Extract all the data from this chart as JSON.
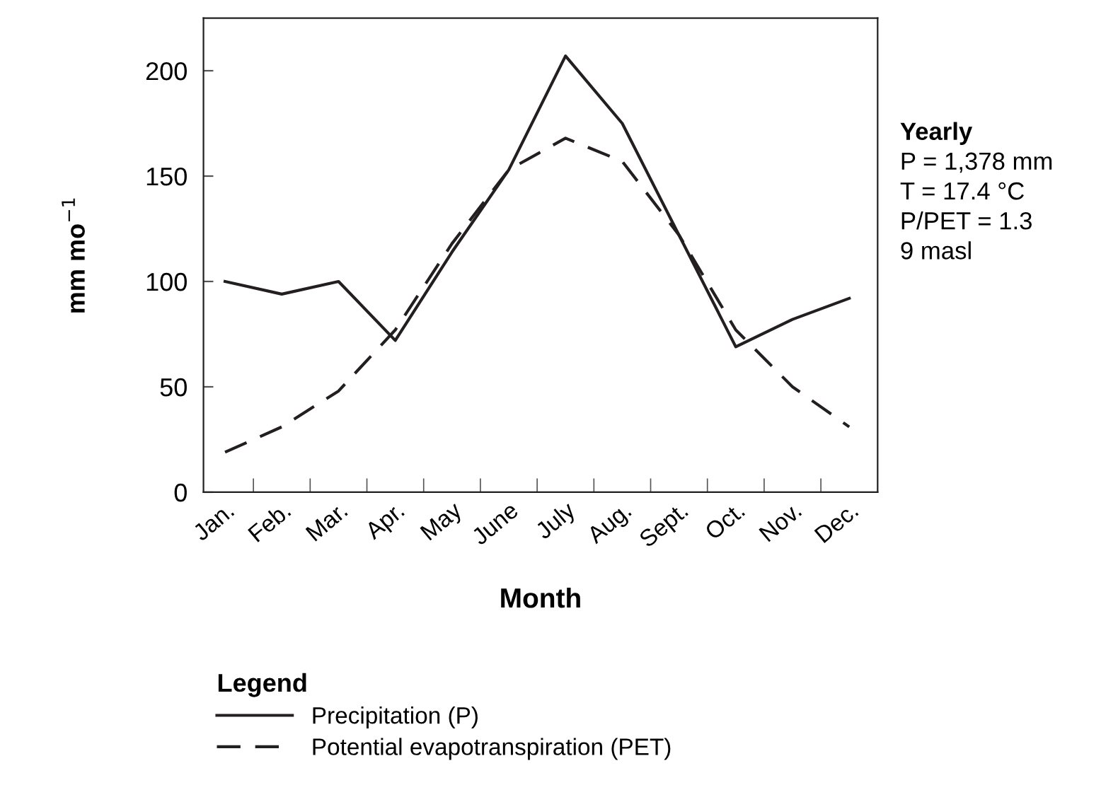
{
  "chart_data": {
    "type": "line",
    "xlabel": "Month",
    "ylabel": "mm mo$^{−1}$",
    "categories": [
      "Jan.",
      "Feb.",
      "Mar.",
      "Apr.",
      "May",
      "June",
      "July",
      "Aug.",
      "Sept.",
      "Oct.",
      "Nov.",
      "Dec."
    ],
    "series": [
      {
        "name": "Precipitation (P)",
        "color": "#231f20",
        "line_style": "solid",
        "values": [
          100,
          94,
          100,
          72,
          114,
          153,
          207,
          175,
          122,
          69,
          82,
          92
        ]
      },
      {
        "name": "Potential evapotranspiration (PET)",
        "color": "#231f20",
        "line_style": "dashed",
        "values": [
          19,
          31,
          48,
          77,
          118,
          153,
          168,
          157,
          122,
          77,
          50,
          31
        ]
      }
    ],
    "ylim": [
      0,
      225
    ],
    "yticks": [
      0,
      50,
      100,
      150,
      200
    ],
    "grid": false,
    "marker": "none",
    "legend": "bottom",
    "legend_title": "Legend",
    "annotations": [
      "Yearly",
      "P = 1,378 mm",
      "T = 17.4 °C",
      "P/PET = 1.3",
      "9 masl"
    ]
  }
}
